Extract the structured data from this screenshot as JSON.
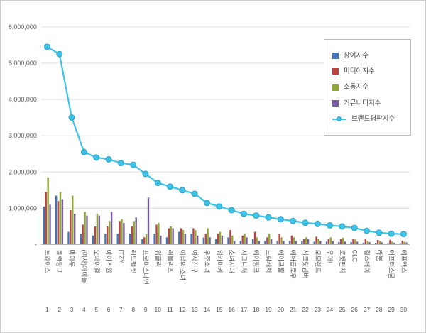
{
  "chart_data": {
    "type": "bar",
    "subtype": "grouped-bars-with-line-overlay",
    "title": "",
    "xlabel": "",
    "ylabel": "",
    "ylim": [
      0,
      6000000
    ],
    "y_tick_step": 1000000,
    "y_tick_labels": [
      "-",
      "1,000,000",
      "2,000,000",
      "3,000,000",
      "4,000,000",
      "5,000,000",
      "6,000,000"
    ],
    "grid": true,
    "legend_position": "upper-right-inside",
    "categories": [
      "트와이스",
      "블랙핑크",
      "마마무",
      "(여자)아이들",
      "오마이걸",
      "아이즈원",
      "ITZY",
      "레드벨벳",
      "프로미스나인",
      "위클리",
      "러블리즈",
      "이달의 소녀",
      "여자친구",
      "우주소녀",
      "위키미키",
      "소녀시대",
      "시그니처",
      "에이핑크",
      "드림캐쳐",
      "에이프릴",
      "에버글로우",
      "시크릿넘버",
      "모모랜드",
      "우아!",
      "로켓펀치",
      "CLC",
      "걸스데이",
      "라붐",
      "애프터스쿨",
      "에프엑스"
    ],
    "ranks": [
      "1",
      "2",
      "3",
      "4",
      "5",
      "6",
      "7",
      "8",
      "9",
      "10",
      "11",
      "12",
      "13",
      "14",
      "15",
      "16",
      "17",
      "18",
      "19",
      "20",
      "21",
      "22",
      "23",
      "24",
      "25",
      "26",
      "27",
      "28",
      "29",
      "30"
    ],
    "series": [
      {
        "key": "participation",
        "name": "참여지수",
        "type": "bar",
        "color": "#4672B8",
        "values": [
          1050000,
          1350000,
          350000,
          300000,
          250000,
          300000,
          300000,
          300000,
          150000,
          300000,
          200000,
          350000,
          300000,
          200000,
          150000,
          200000,
          100000,
          150000,
          100000,
          100000,
          100000,
          100000,
          80000,
          80000,
          70000,
          70000,
          50000,
          50000,
          40000,
          40000
        ]
      },
      {
        "key": "media",
        "name": "미디어지수",
        "type": "bar",
        "color": "#B94441",
        "values": [
          1450000,
          1200000,
          950000,
          550000,
          500000,
          500000,
          650000,
          500000,
          200000,
          550000,
          450000,
          450000,
          450000,
          300000,
          300000,
          400000,
          250000,
          350000,
          200000,
          300000,
          250000,
          150000,
          220000,
          150000,
          160000,
          160000,
          160000,
          130000,
          130000,
          110000
        ]
      },
      {
        "key": "communication",
        "name": "소통지수",
        "type": "bar",
        "color": "#8EAA33",
        "values": [
          1850000,
          1450000,
          1350000,
          900000,
          850000,
          650000,
          700000,
          650000,
          300000,
          600000,
          500000,
          400000,
          400000,
          450000,
          350000,
          250000,
          300000,
          200000,
          300000,
          200000,
          200000,
          200000,
          170000,
          200000,
          190000,
          150000,
          100000,
          90000,
          80000,
          80000
        ]
      },
      {
        "key": "community",
        "name": "커뮤니티지수",
        "type": "bar",
        "color": "#7A5CA5",
        "values": [
          1100000,
          1250000,
          850000,
          800000,
          800000,
          900000,
          600000,
          750000,
          1300000,
          250000,
          450000,
          300000,
          250000,
          200000,
          250000,
          100000,
          200000,
          100000,
          150000,
          100000,
          100000,
          150000,
          100000,
          100000,
          80000,
          80000,
          70000,
          60000,
          50000,
          60000
        ]
      },
      {
        "key": "brand",
        "name": "브랜드평판지수",
        "type": "line",
        "color": "#3EC3E8",
        "marker_stroke": "#2B9FC4",
        "values": [
          5450000,
          5250000,
          3500000,
          2550000,
          2400000,
          2350000,
          2250000,
          2200000,
          1950000,
          1700000,
          1600000,
          1500000,
          1400000,
          1150000,
          1050000,
          950000,
          850000,
          800000,
          750000,
          700000,
          650000,
          600000,
          570000,
          530000,
          500000,
          460000,
          380000,
          330000,
          300000,
          290000
        ]
      }
    ]
  }
}
